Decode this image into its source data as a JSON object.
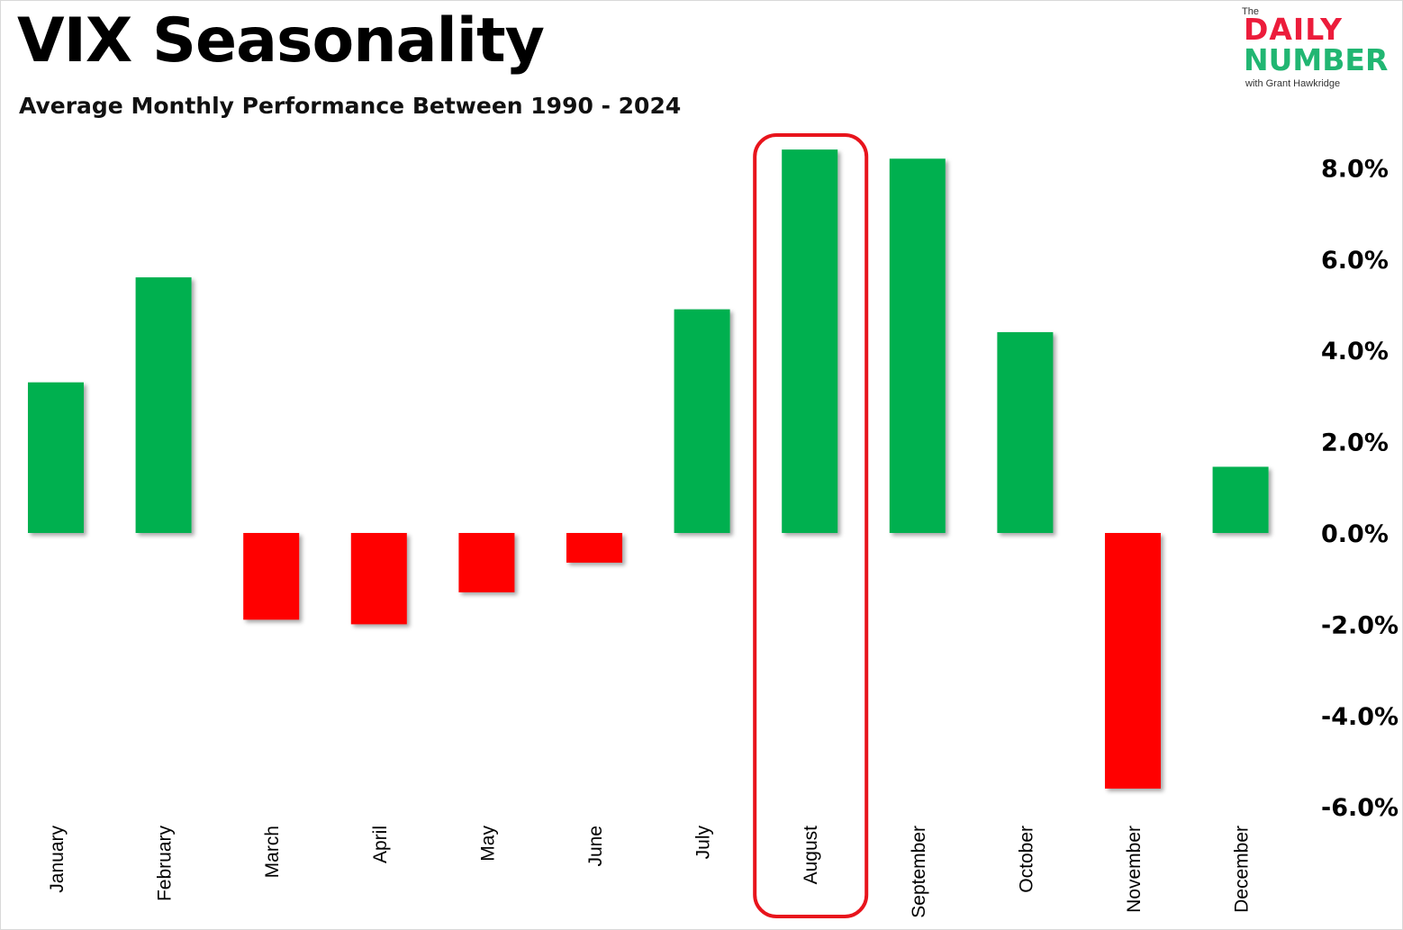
{
  "header": {
    "title": "VIX Seasonality",
    "subtitle": "Average Monthly Performance Between 1990 - 2024"
  },
  "logo": {
    "the": "The",
    "daily": "DAILY",
    "number": "NUMBER",
    "with": "with Grant Hawkridge"
  },
  "colors": {
    "positive": "#00b050",
    "negative": "#ff0000",
    "highlight": "#e8141c"
  },
  "chart_data": {
    "type": "bar",
    "title": "VIX Seasonality",
    "subtitle": "Average Monthly Performance Between 1990 - 2024",
    "categories": [
      "January",
      "February",
      "March",
      "April",
      "May",
      "June",
      "July",
      "August",
      "September",
      "October",
      "November",
      "December"
    ],
    "values": [
      3.3,
      5.6,
      -1.9,
      -2.0,
      -1.3,
      -0.65,
      4.9,
      8.4,
      8.2,
      4.4,
      -5.6,
      1.45
    ],
    "unit": "%",
    "ylim": [
      -6.0,
      8.0
    ],
    "yticks": [
      "8.0%",
      "6.0%",
      "4.0%",
      "2.0%",
      "0.0%",
      "-2.0%",
      "-4.0%",
      "-6.0%"
    ],
    "ytick_values": [
      8,
      6,
      4,
      2,
      0,
      -2,
      -4,
      -6
    ],
    "y_axis_side": "right",
    "grid": false,
    "highlighted_category": "August"
  }
}
